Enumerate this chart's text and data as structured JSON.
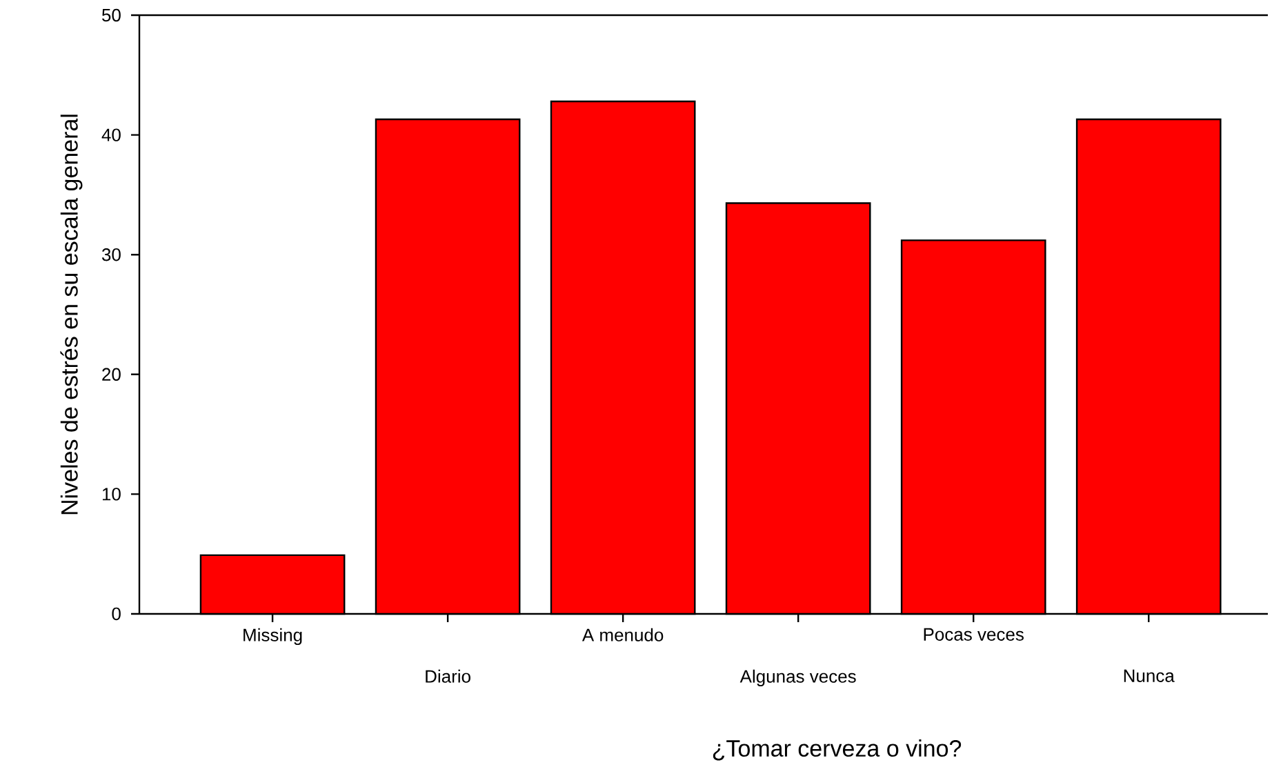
{
  "chart_data": {
    "type": "bar",
    "xlabel": "¿Tomar cerveza o vino?",
    "ylabel": "Niveles de estrés en su escala general",
    "categories": [
      "Missing",
      "Diario",
      "A menudo",
      "Algunas veces",
      "Pocas veces",
      "Nunca"
    ],
    "values": [
      4.9,
      41.3,
      42.8,
      34.3,
      31.2,
      41.3
    ],
    "color": "#ff0000",
    "ylim": [
      0,
      50
    ],
    "yticks": [
      0,
      10,
      20,
      30,
      40,
      50
    ]
  }
}
